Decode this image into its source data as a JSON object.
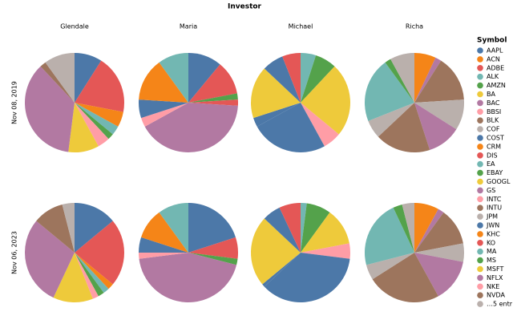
{
  "chart_data": {
    "type": "pie",
    "title": "Investor",
    "legend_title": "Symbol",
    "series": [
      {
        "name": "AAPL",
        "color": "#4c78a8"
      },
      {
        "name": "ACN",
        "color": "#f58518"
      },
      {
        "name": "ADBE",
        "color": "#e45756"
      },
      {
        "name": "ALK",
        "color": "#72b7b2"
      },
      {
        "name": "AMZN",
        "color": "#54a24b"
      },
      {
        "name": "BA",
        "color": "#eeca3b"
      },
      {
        "name": "BAC",
        "color": "#b279a2"
      },
      {
        "name": "BBSI",
        "color": "#ff9da6"
      },
      {
        "name": "BLK",
        "color": "#9d755d"
      },
      {
        "name": "COF",
        "color": "#bab0ac"
      },
      {
        "name": "COST",
        "color": "#4c78a8"
      },
      {
        "name": "CRM",
        "color": "#f58518"
      },
      {
        "name": "DIS",
        "color": "#e45756"
      },
      {
        "name": "EA",
        "color": "#72b7b2"
      },
      {
        "name": "EBAY",
        "color": "#54a24b"
      },
      {
        "name": "GOOGL",
        "color": "#eeca3b"
      },
      {
        "name": "GS",
        "color": "#b279a2"
      },
      {
        "name": "INTC",
        "color": "#ff9da6"
      },
      {
        "name": "INTU",
        "color": "#9d755d"
      },
      {
        "name": "JPM",
        "color": "#bab0ac"
      },
      {
        "name": "JWN",
        "color": "#4c78a8"
      },
      {
        "name": "KHC",
        "color": "#f58518"
      },
      {
        "name": "KO",
        "color": "#e45756"
      },
      {
        "name": "MA",
        "color": "#72b7b2"
      },
      {
        "name": "MS",
        "color": "#54a24b"
      },
      {
        "name": "MSFT",
        "color": "#eeca3b"
      },
      {
        "name": "NFLX",
        "color": "#b279a2"
      },
      {
        "name": "NKE",
        "color": "#ff9da6"
      },
      {
        "name": "NVDA",
        "color": "#9d755d"
      },
      {
        "name": "…5 entr",
        "color": "#bab0ac"
      }
    ],
    "rows": [
      "Nov 08, 2019",
      "Nov 06, 2023"
    ],
    "columns": [
      "Glendale",
      "Maria",
      "Michael",
      "Richa"
    ],
    "panels": [
      [
        {
          "slices": [
            {
              "name": "AAPL",
              "value": 9
            },
            {
              "name": "ADBE",
              "value": 19
            },
            {
              "name": "CRM",
              "value": 5
            },
            {
              "name": "EA",
              "value": 3
            },
            {
              "name": "EBAY",
              "value": 2
            },
            {
              "name": "INTC",
              "value": 4
            },
            {
              "name": "GOOGL",
              "value": 10
            },
            {
              "name": "GS",
              "value": 36
            },
            {
              "name": "INTU",
              "value": 2
            },
            {
              "name": "COF",
              "value": 10
            }
          ]
        },
        {
          "slices": [
            {
              "name": "AAPL",
              "value": 11
            },
            {
              "name": "ADBE",
              "value": 11
            },
            {
              "name": "AMZN",
              "value": 2
            },
            {
              "name": "DIS",
              "value": 2
            },
            {
              "name": "BAC",
              "value": 41
            },
            {
              "name": "BBSI",
              "value": 3
            },
            {
              "name": "COST",
              "value": 6
            },
            {
              "name": "ACN",
              "value": 14
            },
            {
              "name": "ALK",
              "value": 10
            }
          ]
        },
        {
          "slices": [
            {
              "name": "ALK",
              "value": 5
            },
            {
              "name": "AMZN",
              "value": 7
            },
            {
              "name": "BA",
              "value": 24
            },
            {
              "name": "BBSI",
              "value": 6
            },
            {
              "name": "COST",
              "value": 25
            },
            {
              "name": "JWN",
              "value": 3
            },
            {
              "name": "GOOGL",
              "value": 17
            },
            {
              "name": "AAPL",
              "value": 7
            },
            {
              "name": "ADBE",
              "value": 6
            }
          ]
        },
        {
          "slices": [
            {
              "name": "ACN",
              "value": 7
            },
            {
              "name": "BAC",
              "value": 2
            },
            {
              "name": "BLK",
              "value": 15
            },
            {
              "name": "COF",
              "value": 10
            },
            {
              "name": "GS",
              "value": 11
            },
            {
              "name": "INTU",
              "value": 18
            },
            {
              "name": "JPM",
              "value": 6
            },
            {
              "name": "MA",
              "value": 21
            },
            {
              "name": "MS",
              "value": 2
            },
            {
              "name": "…5 entr",
              "value": 8
            }
          ]
        }
      ],
      [
        {
          "slices": [
            {
              "name": "AAPL",
              "value": 14
            },
            {
              "name": "ADBE",
              "value": 22
            },
            {
              "name": "CRM",
              "value": 2
            },
            {
              "name": "EA",
              "value": 2
            },
            {
              "name": "EBAY",
              "value": 2
            },
            {
              "name": "INTC",
              "value": 2
            },
            {
              "name": "GOOGL",
              "value": 13
            },
            {
              "name": "GS",
              "value": 29
            },
            {
              "name": "INTU",
              "value": 10
            },
            {
              "name": "COF",
              "value": 4
            }
          ]
        },
        {
          "slices": [
            {
              "name": "AAPL",
              "value": 20
            },
            {
              "name": "ADBE",
              "value": 5
            },
            {
              "name": "DIS",
              "value": 2
            },
            {
              "name": "AMZN",
              "value": 2
            },
            {
              "name": "BAC",
              "value": 44
            },
            {
              "name": "BBSI",
              "value": 2
            },
            {
              "name": "COST",
              "value": 5
            },
            {
              "name": "ACN",
              "value": 10
            },
            {
              "name": "ALK",
              "value": 10
            }
          ]
        },
        {
          "slices": [
            {
              "name": "ALK",
              "value": 2
            },
            {
              "name": "AMZN",
              "value": 8
            },
            {
              "name": "BA",
              "value": 12
            },
            {
              "name": "BBSI",
              "value": 5
            },
            {
              "name": "COST",
              "value": 36
            },
            {
              "name": "JWN",
              "value": 1
            },
            {
              "name": "GOOGL",
              "value": 23
            },
            {
              "name": "AAPL",
              "value": 6
            },
            {
              "name": "ADBE",
              "value": 7
            }
          ]
        },
        {
          "slices": [
            {
              "name": "ACN",
              "value": 8
            },
            {
              "name": "BAC",
              "value": 2
            },
            {
              "name": "BLK",
              "value": 12
            },
            {
              "name": "COF",
              "value": 6
            },
            {
              "name": "GS",
              "value": 14
            },
            {
              "name": "INTU",
              "value": 24
            },
            {
              "name": "JPM",
              "value": 5
            },
            {
              "name": "MA",
              "value": 22
            },
            {
              "name": "MS",
              "value": 3
            },
            {
              "name": "…5 entr",
              "value": 4
            }
          ]
        }
      ]
    ]
  }
}
